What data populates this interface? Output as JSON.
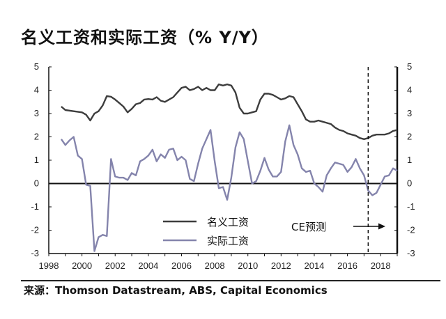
{
  "chart_data": {
    "type": "line",
    "title": "名义工资和实际工资（% Y/Y）",
    "source": "来源：Thomson Datastream, ABS, Capital Economics",
    "xlim": [
      1998,
      2019
    ],
    "ylim": [
      -3,
      5
    ],
    "x_ticks": [
      "1998",
      "2000",
      "2002",
      "2004",
      "2006",
      "2008",
      "2010",
      "2012",
      "2014",
      "2016",
      "2018"
    ],
    "y_ticks_left": [
      "5",
      "4",
      "3",
      "2",
      "1",
      "0",
      "-1",
      "-2",
      "-3"
    ],
    "y_ticks_right": [
      "5",
      "4",
      "3",
      "2",
      "1",
      "0",
      "-1",
      "-2",
      "-3"
    ],
    "grid": false,
    "legend_position": "bottom-center",
    "forecast_start": 2017.25,
    "forecast_label": "CE预测",
    "colors": {
      "nominal": "#3d3d3d",
      "real": "#8484ac",
      "axis": "#111111"
    },
    "series": [
      {
        "name": "名义工资",
        "points": [
          [
            1998.75,
            3.3
          ],
          [
            1999.0,
            3.15
          ],
          [
            1999.5,
            3.1
          ],
          [
            2000.0,
            3.05
          ],
          [
            2000.25,
            2.95
          ],
          [
            2000.5,
            2.7
          ],
          [
            2000.75,
            3.0
          ],
          [
            2001.0,
            3.1
          ],
          [
            2001.25,
            3.35
          ],
          [
            2001.5,
            3.75
          ],
          [
            2001.75,
            3.72
          ],
          [
            2002.0,
            3.6
          ],
          [
            2002.25,
            3.45
          ],
          [
            2002.5,
            3.3
          ],
          [
            2002.75,
            3.05
          ],
          [
            2003.0,
            3.2
          ],
          [
            2003.25,
            3.4
          ],
          [
            2003.5,
            3.45
          ],
          [
            2003.75,
            3.6
          ],
          [
            2004.0,
            3.62
          ],
          [
            2004.25,
            3.6
          ],
          [
            2004.5,
            3.7
          ],
          [
            2004.75,
            3.55
          ],
          [
            2005.0,
            3.5
          ],
          [
            2005.25,
            3.6
          ],
          [
            2005.5,
            3.7
          ],
          [
            2005.75,
            3.9
          ],
          [
            2006.0,
            4.1
          ],
          [
            2006.25,
            4.15
          ],
          [
            2006.5,
            4.0
          ],
          [
            2006.75,
            4.05
          ],
          [
            2007.0,
            4.15
          ],
          [
            2007.25,
            4.0
          ],
          [
            2007.5,
            4.1
          ],
          [
            2007.75,
            4.0
          ],
          [
            2008.0,
            4.0
          ],
          [
            2008.25,
            4.25
          ],
          [
            2008.5,
            4.2
          ],
          [
            2008.75,
            4.25
          ],
          [
            2009.0,
            4.2
          ],
          [
            2009.25,
            3.9
          ],
          [
            2009.5,
            3.25
          ],
          [
            2009.75,
            3.0
          ],
          [
            2010.0,
            3.0
          ],
          [
            2010.25,
            3.05
          ],
          [
            2010.5,
            3.1
          ],
          [
            2010.75,
            3.6
          ],
          [
            2011.0,
            3.85
          ],
          [
            2011.25,
            3.85
          ],
          [
            2011.5,
            3.8
          ],
          [
            2011.75,
            3.7
          ],
          [
            2012.0,
            3.6
          ],
          [
            2012.25,
            3.65
          ],
          [
            2012.5,
            3.75
          ],
          [
            2012.75,
            3.7
          ],
          [
            2013.0,
            3.4
          ],
          [
            2013.25,
            3.1
          ],
          [
            2013.5,
            2.75
          ],
          [
            2013.75,
            2.65
          ],
          [
            2014.0,
            2.65
          ],
          [
            2014.25,
            2.7
          ],
          [
            2014.5,
            2.65
          ],
          [
            2014.75,
            2.6
          ],
          [
            2015.0,
            2.55
          ],
          [
            2015.25,
            2.4
          ],
          [
            2015.5,
            2.3
          ],
          [
            2015.75,
            2.25
          ],
          [
            2016.0,
            2.15
          ],
          [
            2016.25,
            2.1
          ],
          [
            2016.5,
            2.05
          ],
          [
            2016.75,
            1.95
          ],
          [
            2017.0,
            1.9
          ],
          [
            2017.25,
            1.95
          ],
          [
            2017.5,
            2.05
          ],
          [
            2017.75,
            2.1
          ],
          [
            2018.0,
            2.1
          ],
          [
            2018.25,
            2.1
          ],
          [
            2018.5,
            2.15
          ],
          [
            2018.75,
            2.25
          ],
          [
            2019.0,
            2.3
          ]
        ]
      },
      {
        "name": "实际工资",
        "points": [
          [
            1998.75,
            1.9
          ],
          [
            1999.0,
            1.65
          ],
          [
            1999.25,
            1.85
          ],
          [
            1999.5,
            2.0
          ],
          [
            1999.75,
            1.2
          ],
          [
            2000.0,
            1.05
          ],
          [
            2000.25,
            -0.05
          ],
          [
            2000.5,
            -0.1
          ],
          [
            2000.75,
            -2.9
          ],
          [
            2001.0,
            -2.3
          ],
          [
            2001.25,
            -2.2
          ],
          [
            2001.5,
            -2.25
          ],
          [
            2001.75,
            1.05
          ],
          [
            2002.0,
            0.3
          ],
          [
            2002.25,
            0.25
          ],
          [
            2002.5,
            0.25
          ],
          [
            2002.75,
            0.15
          ],
          [
            2003.0,
            0.45
          ],
          [
            2003.25,
            0.35
          ],
          [
            2003.5,
            0.95
          ],
          [
            2003.75,
            1.05
          ],
          [
            2004.0,
            1.2
          ],
          [
            2004.25,
            1.45
          ],
          [
            2004.5,
            0.95
          ],
          [
            2004.75,
            1.25
          ],
          [
            2005.0,
            1.1
          ],
          [
            2005.25,
            1.45
          ],
          [
            2005.5,
            1.5
          ],
          [
            2005.75,
            1.0
          ],
          [
            2006.0,
            1.15
          ],
          [
            2006.25,
            1.0
          ],
          [
            2006.5,
            0.2
          ],
          [
            2006.75,
            0.1
          ],
          [
            2007.0,
            0.85
          ],
          [
            2007.25,
            1.5
          ],
          [
            2007.5,
            1.9
          ],
          [
            2007.75,
            2.3
          ],
          [
            2008.0,
            0.95
          ],
          [
            2008.25,
            -0.2
          ],
          [
            2008.5,
            -0.15
          ],
          [
            2008.75,
            -0.7
          ],
          [
            2009.0,
            0.25
          ],
          [
            2009.25,
            1.55
          ],
          [
            2009.5,
            2.2
          ],
          [
            2009.75,
            1.9
          ],
          [
            2010.0,
            0.95
          ],
          [
            2010.25,
            0.0
          ],
          [
            2010.5,
            0.1
          ],
          [
            2010.75,
            0.55
          ],
          [
            2011.0,
            1.1
          ],
          [
            2011.25,
            0.6
          ],
          [
            2011.5,
            0.3
          ],
          [
            2011.75,
            0.3
          ],
          [
            2012.0,
            0.5
          ],
          [
            2012.25,
            1.8
          ],
          [
            2012.5,
            2.5
          ],
          [
            2012.75,
            1.65
          ],
          [
            2013.0,
            1.25
          ],
          [
            2013.25,
            0.65
          ],
          [
            2013.5,
            0.5
          ],
          [
            2013.75,
            0.55
          ],
          [
            2014.0,
            0.0
          ],
          [
            2014.25,
            -0.15
          ],
          [
            2014.5,
            -0.35
          ],
          [
            2014.75,
            0.35
          ],
          [
            2015.0,
            0.65
          ],
          [
            2015.25,
            0.9
          ],
          [
            2015.5,
            0.85
          ],
          [
            2015.75,
            0.8
          ],
          [
            2016.0,
            0.5
          ],
          [
            2016.25,
            0.7
          ],
          [
            2016.5,
            1.05
          ],
          [
            2016.75,
            0.65
          ],
          [
            2017.0,
            0.35
          ],
          [
            2017.25,
            -0.3
          ],
          [
            2017.5,
            -0.5
          ],
          [
            2017.75,
            -0.4
          ],
          [
            2018.0,
            -0.05
          ],
          [
            2018.25,
            0.3
          ],
          [
            2018.5,
            0.35
          ],
          [
            2018.75,
            0.65
          ],
          [
            2019.0,
            0.55
          ]
        ]
      }
    ]
  }
}
